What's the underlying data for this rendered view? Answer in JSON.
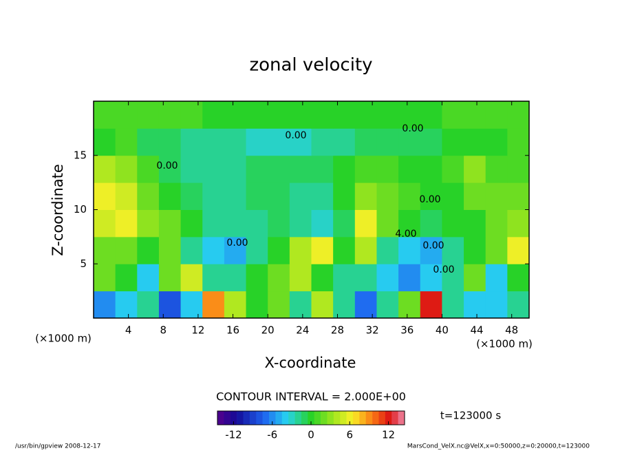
{
  "chart_data": {
    "type": "heatmap",
    "title": "zonal velocity",
    "xlabel": "X-coordinate",
    "ylabel": "Z-coordinate",
    "x_unit_left": "(×1000 m)",
    "x_unit_right": "(×1000 m)",
    "x": [
      1.25,
      3.75,
      6.25,
      8.75,
      11.25,
      13.75,
      16.25,
      18.75,
      21.25,
      23.75,
      26.25,
      28.75,
      31.25,
      33.75,
      36.25,
      38.75,
      41.25,
      43.75,
      46.25,
      48.75
    ],
    "y": [
      1.25,
      3.75,
      6.25,
      8.75,
      11.25,
      13.75,
      16.25,
      18.75
    ],
    "z": [
      [
        -6,
        -4,
        -2,
        -8,
        -4,
        9,
        4,
        0,
        2,
        -2,
        4,
        -2,
        -7,
        -2,
        2,
        12,
        -2,
        -4,
        -4,
        -2
      ],
      [
        2,
        0,
        -4,
        2,
        5,
        -2,
        -2,
        0,
        2,
        4,
        0,
        -2,
        -2,
        -4,
        -6,
        -4,
        -2,
        2,
        -4,
        0
      ],
      [
        2,
        2,
        0,
        2,
        -2,
        -4,
        -5,
        -2,
        0,
        4,
        6,
        0,
        4,
        -2,
        -4,
        -5,
        -2,
        0,
        2,
        6
      ],
      [
        5,
        6,
        3,
        2,
        0,
        -2,
        -2,
        -2,
        -1,
        -2,
        -3,
        -1,
        6,
        2,
        0,
        -1,
        0,
        0,
        2,
        3
      ],
      [
        6,
        5,
        2,
        0,
        -1,
        -2,
        -2,
        -1,
        -1,
        -2,
        -2,
        0,
        3,
        2,
        1,
        0,
        0,
        2,
        2,
        2
      ],
      [
        4,
        3,
        1,
        -1,
        -2,
        -2,
        -2,
        -1,
        -1,
        -1,
        -1,
        0,
        1,
        1,
        0,
        0,
        1,
        3,
        1,
        1
      ],
      [
        0,
        1,
        -1,
        -1,
        -2,
        -2,
        -2,
        -3,
        -3,
        -3,
        -2,
        -2,
        -1,
        -1,
        -1,
        -1,
        0,
        0,
        0,
        1
      ],
      [
        1,
        1,
        1,
        1,
        1,
        0,
        0,
        0,
        0,
        0,
        0,
        0,
        0,
        0,
        0,
        0,
        1,
        1,
        1,
        1
      ]
    ],
    "xlim": [
      0,
      50
    ],
    "ylim": [
      0,
      20
    ],
    "xticks": [
      4,
      8,
      12,
      16,
      20,
      24,
      28,
      32,
      36,
      40,
      44,
      48
    ],
    "yticks": [
      5,
      10,
      15
    ],
    "clim": [
      -14.5,
      14.5
    ],
    "cticks": [
      -12,
      -6,
      0,
      6,
      12
    ],
    "contour_labels": [
      "0.00",
      "0.00",
      "0.00",
      "0.00",
      "4.00",
      "0.00",
      "0.00",
      "0.00"
    ],
    "contour_interval": "CONTOUR INTERVAL = 2.000E+00",
    "time_label": "t=123000 s",
    "footer_left": "/usr/bin/gpview  2008-12-17",
    "footer_right": "MarsCond_VelX.nc@VelX,x=0:50000,z=0:20000,t=123000"
  }
}
